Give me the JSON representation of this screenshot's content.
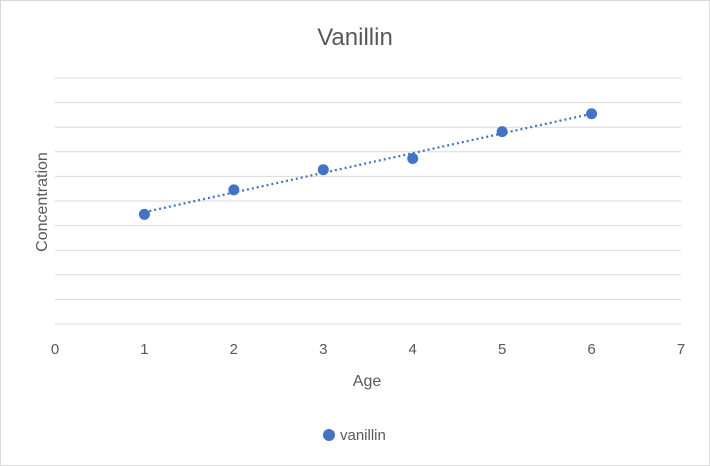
{
  "chart_data": {
    "type": "scatter",
    "title": "Vanillin",
    "xlabel": "Age",
    "ylabel": "Concentration",
    "xlim": [
      0,
      7
    ],
    "x_ticks": [
      "0",
      "1",
      "2",
      "3",
      "4",
      "5",
      "6",
      "7"
    ],
    "y_tick_labels_shown": false,
    "grid": "horizontal",
    "trendline": "linear (dotted)",
    "legend_position": "bottom",
    "series": [
      {
        "name": "vanillin",
        "color": "#4472c4",
        "x": [
          1,
          2,
          3,
          4,
          5,
          6
        ],
        "y": [
          4.9,
          6.0,
          6.9,
          7.4,
          8.6,
          9.4
        ]
      }
    ]
  }
}
